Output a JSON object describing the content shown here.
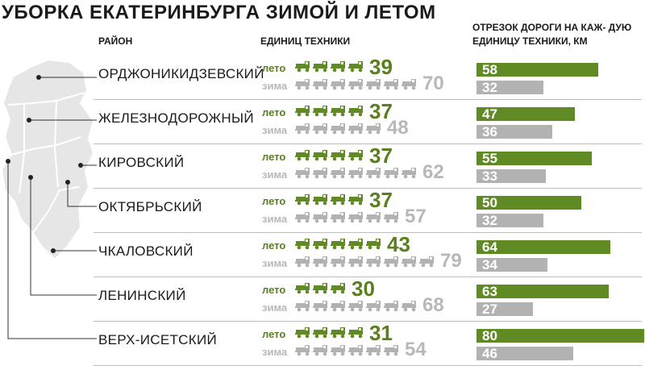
{
  "title": "УБОРКА ЕКАТЕРИНБУРГА ЗИМОЙ И ЛЕТОМ",
  "headers": {
    "district": "РАЙОН",
    "units": "ЕДИНИЦ ТЕХНИКИ",
    "road": "ОТРЕЗОК ДОРОГИ НА КАЖ- ДУЮ ЕДИНИЦУ ТЕХНИКИ, КМ"
  },
  "season_labels": {
    "summer": "лето",
    "winter": "зима"
  },
  "colors": {
    "summer": "#608b24",
    "summer_text": "#5a7f1f",
    "winter": "#b2b2b2",
    "map": "#e6e6e6"
  },
  "chart_data": [
    {
      "type": "table",
      "title": "ЕДИНИЦ ТЕХНИКИ",
      "categories": [
        "ОРДЖОНИКИДЗЕВСКИЙ",
        "ЖЕЛЕЗНОДОРОЖНЫЙ",
        "КИРОВСКИЙ",
        "ОКТЯБРЬСКИЙ",
        "ЧКАЛОВСКИЙ",
        "ЛЕНИНСКИЙ",
        "ВЕРХ-ИСЕТСКИЙ"
      ],
      "series": [
        {
          "name": "лето",
          "values": [
            39,
            37,
            37,
            37,
            43,
            30,
            31
          ]
        },
        {
          "name": "зима",
          "values": [
            70,
            48,
            62,
            57,
            79,
            68,
            54
          ]
        }
      ]
    },
    {
      "type": "bar",
      "title": "ОТРЕЗОК ДОРОГИ НА КАЖ- ДУЮ ЕДИНИЦУ ТЕХНИКИ, КМ",
      "categories": [
        "ОРДЖОНИКИДЗЕВСКИЙ",
        "ЖЕЛЕЗНОДОРОЖНЫЙ",
        "КИРОВСКИЙ",
        "ОКТЯБРЬСКИЙ",
        "ЧКАЛОВСКИЙ",
        "ЛЕНИНСКИЙ",
        "ВЕРХ-ИСЕТСКИЙ"
      ],
      "series": [
        {
          "name": "лето",
          "values": [
            58,
            47,
            55,
            50,
            64,
            63,
            80
          ]
        },
        {
          "name": "зима",
          "values": [
            32,
            36,
            33,
            32,
            34,
            27,
            46
          ]
        }
      ],
      "ylim": [
        0,
        80
      ]
    }
  ]
}
